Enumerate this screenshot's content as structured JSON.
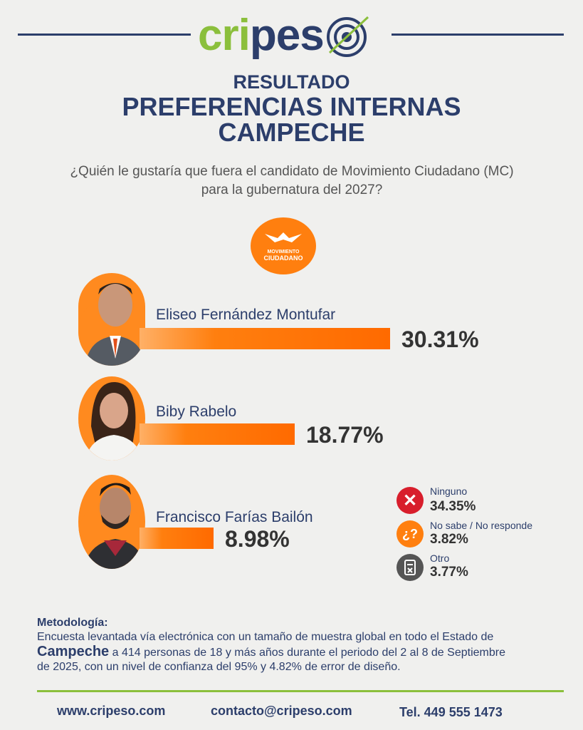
{
  "brand": {
    "logo_part1": "cri",
    "logo_part2": "pes"
  },
  "header": {
    "kicker": "RESULTADO",
    "title_line1": "PREFERENCIAS INTERNAS",
    "title_line2": "CAMPECHE"
  },
  "question": {
    "line1": "¿Quién le gustaría que fuera el candidato de Movimiento Ciudadano (MC)",
    "line2": "para la gubernatura del 2027?"
  },
  "party_logo": {
    "line1": "MOVIMIENTO",
    "line2": "CIUDADANO"
  },
  "chart_data": {
    "type": "bar",
    "orientation": "horizontal",
    "categories": [
      "Eliseo Fernández Montufar",
      "Biby Rabelo",
      "Francisco Farías Bailón"
    ],
    "values": [
      30.31,
      18.77,
      8.98
    ],
    "value_labels": [
      "30.31%",
      "18.77%",
      "8.98%"
    ],
    "unit": "%",
    "bar_color": "#ff7f0f",
    "other_responses": [
      {
        "label": "Ninguno",
        "value": 34.35,
        "value_label": "34.35%",
        "icon": "x-icon",
        "color": "#d81e2c"
      },
      {
        "label": "No sabe / No responde",
        "value": 3.82,
        "value_label": "3.82%",
        "icon": "question-icon",
        "color": "#ff7f0f"
      },
      {
        "label": "Otro",
        "value": 3.77,
        "value_label": "3.77%",
        "icon": "ballot-icon",
        "color": "#555555"
      }
    ]
  },
  "methodology": {
    "heading": "Metodología:",
    "line1": "Encuesta levantada vía electrónica con un tamaño de muestra global en todo el Estado de",
    "bold_word": "Campeche",
    "line2_rest": " a 414 personas de 18 y más años durante el periodo del 2 al 8 de Septiembre",
    "line3": "de 2025, con un nivel de confianza del 95% y 4.82% de error de diseño."
  },
  "footer": {
    "website": "www.cripeso.com",
    "email": "contacto@cripeso.com",
    "phone": "Tel. 449 555 1473"
  },
  "colors": {
    "navy": "#2c3e6b",
    "green": "#8bbf3c",
    "orange": "#ff7f0f"
  }
}
